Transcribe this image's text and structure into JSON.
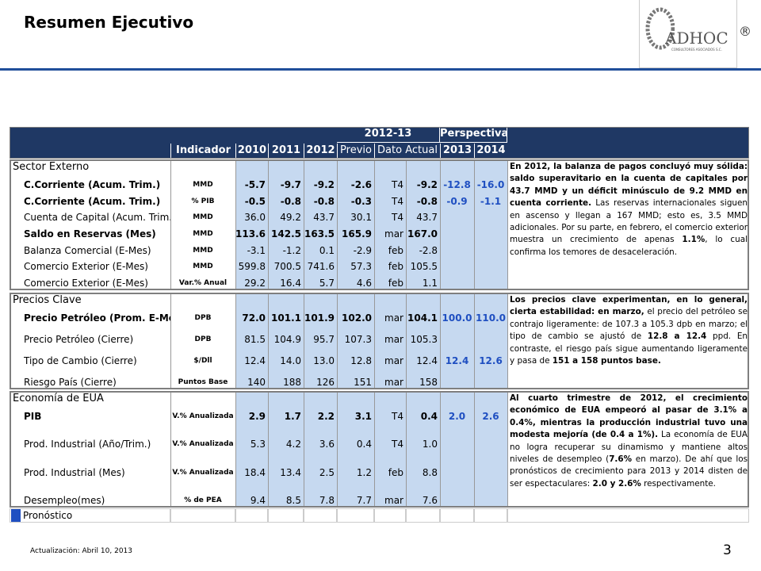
{
  "header": {
    "title": "Resumen Ejecutivo",
    "logo": "ADHOC",
    "logo_mark": "®",
    "logo_tagline": "CONSULTORES ASOCIADOS S.C."
  },
  "table": {
    "group_headers": [
      "2012-13",
      "Perspectiva"
    ],
    "columns": [
      "Indicador",
      "2010",
      "2011",
      "2012",
      "Previo",
      "Dato Actual",
      "2013",
      "2014"
    ],
    "sections": [
      {
        "title": "Sector Externo",
        "rows": [
          {
            "label": "C.Corriente (Acum. Trim.)",
            "unit": "MMD",
            "values": [
              "-5.7",
              "-9.7",
              "-9.2",
              "-2.6"
            ],
            "period": "T4",
            "current": "-9.2",
            "forecast": [
              "-12.8",
              "-16.0"
            ],
            "bold": true
          },
          {
            "label": "C.Corriente (Acum. Trim.)",
            "unit": "% PIB",
            "values": [
              "-0.5",
              "-0.8",
              "-0.8",
              "-0.3"
            ],
            "period": "T4",
            "current": "-0.8",
            "forecast": [
              "-0.9",
              "-1.1"
            ],
            "bold": true
          },
          {
            "label": "Cuenta de Capital (Acum. Trim.)",
            "unit": "MMD",
            "values": [
              "36.0",
              "49.2",
              "43.7",
              "30.1"
            ],
            "period": "T4",
            "current": "43.7",
            "bold": false
          },
          {
            "label": "Saldo en Reservas (Mes)",
            "unit": "MMD",
            "values": [
              "113.6",
              "142.5",
              "163.5",
              "165.9"
            ],
            "period": "mar",
            "current": "167.0",
            "bold": true
          },
          {
            "label": "Balanza Comercial (E-Mes)",
            "unit": "MMD",
            "values": [
              "-3.1",
              "-1.2",
              "0.1",
              "-2.9"
            ],
            "period": "feb",
            "current": "-2.8",
            "bold": false
          },
          {
            "label": "Comercio Exterior (E-Mes)",
            "unit": "MMD",
            "values": [
              "599.8",
              "700.5",
              "741.6",
              "57.3"
            ],
            "period": "feb",
            "current": "105.5",
            "bold": false
          },
          {
            "label": "Comercio Exterior (E-Mes)",
            "unit": "Var.% Anual",
            "values": [
              "29.2",
              "16.4",
              "5.7",
              "4.6"
            ],
            "period": "feb",
            "current": "1.1",
            "bold": false
          }
        ],
        "commentary": [
          {
            "text": "En 2012, la balanza de pagos concluyó muy sólida: saldo superavitario en la cuenta de capitales por 43.7 MMD y un déficit minúsculo de 9.2 MMD en cuenta corriente.",
            "bold": true
          },
          {
            "text": " Las reservas internacionales siguen en ascenso y llegan a 167 MMD; esto es, 3.5 MMD adicionales. Por su parte, en febrero, el comercio exterior muestra un crecimiento de apenas ",
            "bold": false
          },
          {
            "text": "1.1%",
            "bold": true
          },
          {
            "text": ", lo cual confirma los temores de desaceleración.",
            "bold": false
          }
        ]
      },
      {
        "title": "Precios Clave",
        "rows": [
          {
            "label": "Precio Petróleo (Prom. E-Mes)",
            "unit": "DPB",
            "values": [
              "72.0",
              "101.1",
              "101.9",
              "102.0"
            ],
            "period": "mar",
            "current": "104.1",
            "forecast": [
              "100.0",
              "110.0"
            ],
            "bold": true
          },
          {
            "label": "Precio Petróleo (Cierre)",
            "unit": "DPB",
            "values": [
              "81.5",
              "104.9",
              "95.7",
              "107.3"
            ],
            "period": "mar",
            "current": "105.3",
            "bold": false
          },
          {
            "label": "Tipo de Cambio (Cierre)",
            "unit": "$/Dll",
            "values": [
              "12.4",
              "14.0",
              "13.0",
              "12.8"
            ],
            "period": "mar",
            "current": "12.4",
            "forecast": [
              "12.4",
              "12.6"
            ],
            "bold": false
          },
          {
            "label": "Riesgo País (Cierre)",
            "unit": "Puntos Base",
            "values": [
              "140",
              "188",
              "126",
              "151"
            ],
            "period": "mar",
            "current": "158",
            "bold": false
          }
        ],
        "commentary": [
          {
            "text": "Los precios clave experimentan, en lo general, cierta estabilidad: en marzo,",
            "bold": true
          },
          {
            "text": " el precio del petróleo se contrajo ligeramente: de 107.3 a 105.3 dpb en marzo; el tipo de cambio se ajustó de ",
            "bold": false
          },
          {
            "text": "12.8 a 12.4",
            "bold": true
          },
          {
            "text": " ppd. En contraste, el riesgo país sigue aumentando ligeramente y pasa de ",
            "bold": false
          },
          {
            "text": "151 a 158 puntos base.",
            "bold": true
          }
        ]
      },
      {
        "title": "Economía de EUA",
        "rows": [
          {
            "label": "PIB",
            "unit": "V.% Anualizada",
            "values": [
              "2.9",
              "1.7",
              "2.2",
              "3.1"
            ],
            "period": "T4",
            "current": "0.4",
            "forecast": [
              "2.0",
              "2.6"
            ],
            "bold": true
          },
          {
            "label": "Prod. Industrial (Año/Trim.)",
            "unit": "V.% Anualizada",
            "values": [
              "5.3",
              "4.2",
              "3.6",
              "0.4"
            ],
            "period": "T4",
            "current": "1.0",
            "bold": false
          },
          {
            "label": "Prod. Industrial (Mes)",
            "unit": "V.% Anualizada",
            "values": [
              "18.4",
              "13.4",
              "2.5",
              "1.2"
            ],
            "period": "feb",
            "current": "8.8",
            "bold": false
          },
          {
            "label": "Desempleo(mes)",
            "unit": "% de PEA",
            "values": [
              "9.4",
              "8.5",
              "7.8",
              "7.7"
            ],
            "period": "mar",
            "current": "7.6",
            "bold": false
          }
        ],
        "commentary": [
          {
            "text": "Al cuarto trimestre de 2012, el crecimiento económico de EUA empeoró al pasar de 3.1% a 0.4%, mientras la producción industrial tuvo una modesta mejoría (de 0.4 a 1%).",
            "bold": true
          },
          {
            "text": " La economía de EUA no logra recuperar su dinamismo y mantiene altos niveles de desempleo (",
            "bold": false
          },
          {
            "text": "7.6%",
            "bold": true
          },
          {
            "text": " en marzo). De ahí que los pronósticos de crecimiento para 2013 y 2014 disten de ser espectaculares: ",
            "bold": false
          },
          {
            "text": "2.0 y 2.6%",
            "bold": true
          },
          {
            "text": " respectivamente.",
            "bold": false
          }
        ]
      }
    ],
    "legend": "Pronóstico"
  },
  "footer": {
    "updated": "Actualización:  Abril 10, 2013",
    "page": "3"
  }
}
